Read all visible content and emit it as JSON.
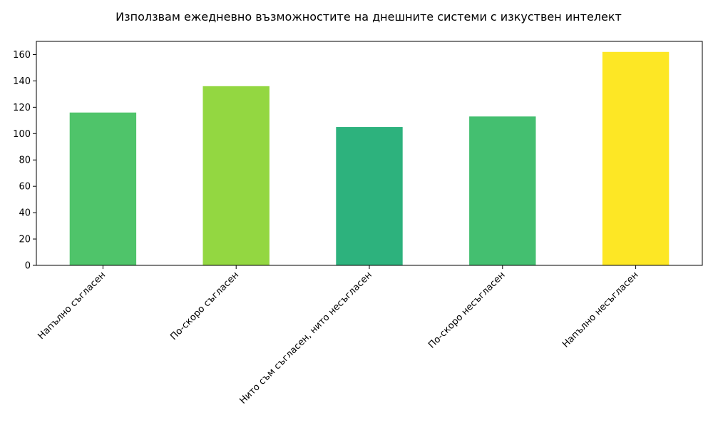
{
  "chart_data": {
    "type": "bar",
    "title": "Използвам ежедневно възможностите на днешните системи с изкуствен интелект",
    "xlabel": "",
    "ylabel": "",
    "categories": [
      "Напълно съгласен",
      "По-скоро съгласен",
      "Нито съм съгласен, нито несъгласен",
      "По-скоро несъгласен",
      "Напълно несъгласен"
    ],
    "values": [
      116,
      136,
      105,
      113,
      162
    ],
    "colors": [
      "#4fc46a",
      "#93d741",
      "#2db27d",
      "#44bf70",
      "#fde725"
    ],
    "ylim": [
      0,
      170
    ],
    "yticks": [
      0,
      20,
      40,
      60,
      80,
      100,
      120,
      140,
      160
    ],
    "grid": false,
    "legend": "none"
  }
}
